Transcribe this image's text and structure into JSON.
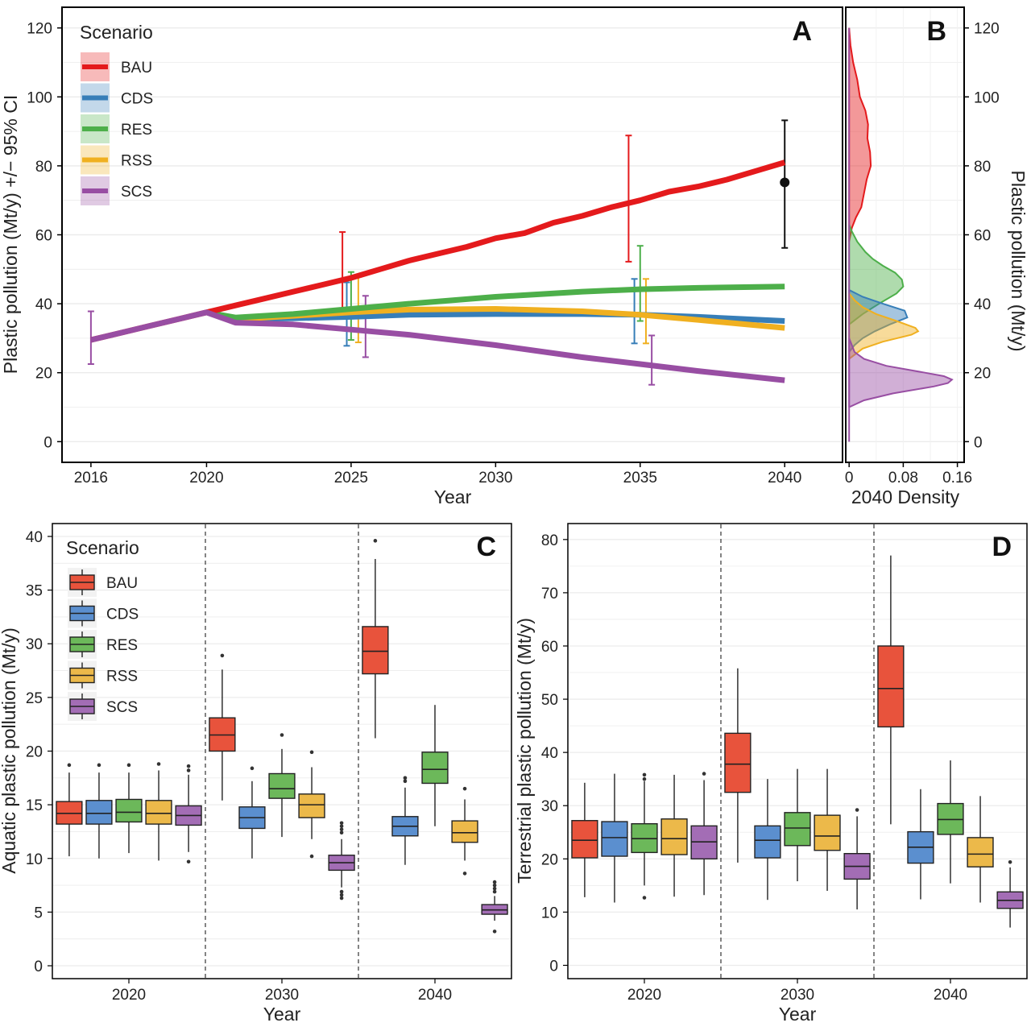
{
  "colors": {
    "BAU": "#e41a1c",
    "CDS": "#377eb8",
    "RES": "#4daf4a",
    "RSS": "#f0b020",
    "SCS": "#984ea3",
    "box_BAU": "#e8533c",
    "box_CDS": "#5b8fcf",
    "box_RES": "#6cb85a",
    "box_RSS": "#ecb94a",
    "box_SCS": "#a36db5"
  },
  "chart_data": [
    {
      "panel": "A",
      "type": "line",
      "xlabel": "Year",
      "ylabel": "Plastic pollution (Mt/y) +/− 95% CI",
      "xlim": [
        2015,
        2042
      ],
      "ylim": [
        -6,
        126
      ],
      "xticks": [
        2016,
        2020,
        2025,
        2030,
        2035,
        2040
      ],
      "yticks": [
        0,
        20,
        40,
        60,
        80,
        100,
        120
      ],
      "legend_title": "Scenario",
      "legend_position": "top-left",
      "series": [
        {
          "name": "BAU",
          "x": [
            2016,
            2017,
            2018,
            2019,
            2020,
            2021,
            2022,
            2023,
            2024,
            2025,
            2026,
            2027,
            2028,
            2029,
            2030,
            2031,
            2032,
            2033,
            2034,
            2035,
            2036,
            2037,
            2038,
            2039,
            2040
          ],
          "y": [
            29.5,
            31.5,
            33.5,
            35.5,
            37.5,
            39.5,
            41.5,
            43.5,
            45.5,
            47.5,
            50,
            52.5,
            54.5,
            56.5,
            59,
            60.5,
            63.5,
            65.5,
            68,
            70,
            72.5,
            74,
            76,
            78.5,
            81
          ]
        },
        {
          "name": "CDS",
          "x": [
            2020,
            2021,
            2023,
            2025,
            2027,
            2030,
            2033,
            2035,
            2037,
            2040
          ],
          "y": [
            37.5,
            35.5,
            35.8,
            36.2,
            36.8,
            37,
            37,
            36.8,
            36.2,
            35
          ]
        },
        {
          "name": "RES",
          "x": [
            2020,
            2021,
            2023,
            2025,
            2027,
            2030,
            2033,
            2035,
            2037,
            2040
          ],
          "y": [
            37.5,
            36,
            37,
            38.5,
            40,
            42,
            43.5,
            44.2,
            44.6,
            45
          ]
        },
        {
          "name": "RSS",
          "x": [
            2020,
            2021,
            2023,
            2025,
            2027,
            2030,
            2033,
            2035,
            2037,
            2040
          ],
          "y": [
            37.5,
            35.5,
            36.5,
            37.5,
            38.3,
            38.5,
            37.8,
            36.8,
            35.3,
            33
          ]
        },
        {
          "name": "SCS",
          "x": [
            2016,
            2017,
            2018,
            2019,
            2020,
            2021,
            2023,
            2025,
            2027,
            2030,
            2033,
            2035,
            2037,
            2040
          ],
          "y": [
            29.5,
            31.5,
            33.5,
            35.5,
            37.5,
            34.5,
            34,
            32.5,
            31,
            28,
            24.5,
            22.5,
            20.5,
            17.8
          ]
        }
      ],
      "error_bars": [
        {
          "series": "SCS",
          "x": 2016,
          "low": 22.5,
          "high": 37.8
        },
        {
          "series": "BAU",
          "x": 2024.7,
          "low": 36.5,
          "high": 60.8
        },
        {
          "series": "CDS",
          "x": 2024.85,
          "low": 27.8,
          "high": 46.2
        },
        {
          "series": "RES",
          "x": 2025.0,
          "low": 29.5,
          "high": 49.2
        },
        {
          "series": "RSS",
          "x": 2025.25,
          "low": 28.8,
          "high": 48.2
        },
        {
          "series": "SCS",
          "x": 2025.5,
          "low": 24.5,
          "high": 42.3
        },
        {
          "series": "BAU",
          "x": 2034.6,
          "low": 52.2,
          "high": 88.8
        },
        {
          "series": "CDS",
          "x": 2034.8,
          "low": 28.5,
          "high": 47.2
        },
        {
          "series": "RES",
          "x": 2035.0,
          "low": 35.0,
          "high": 56.8
        },
        {
          "series": "RSS",
          "x": 2035.2,
          "low": 28.5,
          "high": 47.2
        },
        {
          "series": "SCS",
          "x": 2035.4,
          "low": 16.5,
          "high": 30.8
        },
        {
          "series": "observed",
          "x": 2040,
          "low": 56.2,
          "high": 93.2,
          "point": 75.2
        }
      ]
    },
    {
      "panel": "B",
      "type": "area",
      "xlabel": "2040 Density",
      "ylabel": "Plastic pollution (Mt/y)",
      "xlim": [
        -0.005,
        0.17
      ],
      "ylim": [
        -6,
        126
      ],
      "xticks": [
        0,
        0.08,
        0.16
      ],
      "xtick_labels": [
        "0",
        "0.08",
        "0.16"
      ],
      "yticks": [
        0,
        20,
        40,
        60,
        80,
        100,
        120
      ],
      "series": [
        {
          "name": "BAU",
          "y": [
            58,
            62,
            65,
            68,
            72,
            76,
            80,
            84,
            88,
            92,
            96,
            100,
            105,
            110,
            115,
            120
          ],
          "density": [
            0.0,
            0.004,
            0.01,
            0.018,
            0.022,
            0.026,
            0.032,
            0.031,
            0.027,
            0.028,
            0.024,
            0.016,
            0.012,
            0.006,
            0.002,
            0.0
          ]
        },
        {
          "name": "CDS",
          "y": [
            26,
            28,
            30,
            32,
            34,
            36,
            38,
            40,
            42,
            44
          ],
          "density": [
            0.0,
            0.008,
            0.02,
            0.038,
            0.06,
            0.086,
            0.082,
            0.05,
            0.02,
            0.0
          ]
        },
        {
          "name": "RES",
          "y": [
            34,
            37,
            40,
            43,
            45,
            47,
            49,
            51,
            53,
            55,
            58,
            61,
            63
          ],
          "density": [
            0.0,
            0.02,
            0.044,
            0.07,
            0.08,
            0.078,
            0.068,
            0.05,
            0.035,
            0.024,
            0.012,
            0.004,
            0.0
          ]
        },
        {
          "name": "RSS",
          "y": [
            24,
            27,
            29,
            31,
            32,
            33,
            35,
            37,
            39,
            41,
            43
          ],
          "density": [
            0.0,
            0.02,
            0.05,
            0.092,
            0.102,
            0.098,
            0.07,
            0.04,
            0.02,
            0.008,
            0.0
          ]
        },
        {
          "name": "SCS",
          "y": [
            10,
            12,
            14,
            16,
            17,
            18,
            19,
            20,
            22,
            24,
            26,
            30
          ],
          "density": [
            0.0,
            0.022,
            0.065,
            0.125,
            0.146,
            0.152,
            0.14,
            0.112,
            0.055,
            0.022,
            0.008,
            0.0
          ]
        }
      ]
    },
    {
      "panel": "C",
      "type": "box",
      "xlabel": "Year",
      "ylabel": "Aquatic plastic pollution (Mt/y)",
      "ylim": [
        -1.2,
        41.2
      ],
      "yticks": [
        0,
        5,
        10,
        15,
        20,
        25,
        30,
        35,
        40
      ],
      "categories": [
        "2020",
        "2030",
        "2040"
      ],
      "legend_title": "Scenario",
      "legend_position": "top-left",
      "groups": [
        {
          "year": "2020",
          "boxes": [
            {
              "name": "BAU",
              "min": 10.2,
              "q1": 13.2,
              "median": 14.2,
              "q3": 15.3,
              "max": 18.0,
              "outliers": [
                18.7
              ]
            },
            {
              "name": "CDS",
              "min": 10.0,
              "q1": 13.2,
              "median": 14.2,
              "q3": 15.4,
              "max": 18.0,
              "outliers": [
                18.7
              ]
            },
            {
              "name": "RES",
              "min": 10.5,
              "q1": 13.4,
              "median": 14.3,
              "q3": 15.5,
              "max": 18.0,
              "outliers": [
                18.7
              ]
            },
            {
              "name": "RSS",
              "min": 9.8,
              "q1": 13.2,
              "median": 14.2,
              "q3": 15.4,
              "max": 18.2,
              "outliers": [
                18.8
              ]
            },
            {
              "name": "SCS",
              "min": 10.6,
              "q1": 13.1,
              "median": 14.0,
              "q3": 14.9,
              "max": 17.8,
              "outliers": [
                9.7,
                18.2,
                18.6
              ]
            }
          ]
        },
        {
          "year": "2030",
          "boxes": [
            {
              "name": "BAU",
              "min": 15.4,
              "q1": 20.0,
              "median": 21.5,
              "q3": 23.1,
              "max": 27.6,
              "outliers": [
                28.9
              ]
            },
            {
              "name": "CDS",
              "min": 10.0,
              "q1": 12.8,
              "median": 13.8,
              "q3": 14.8,
              "max": 17.2,
              "outliers": [
                18.4
              ]
            },
            {
              "name": "RES",
              "min": 12.0,
              "q1": 15.6,
              "median": 16.5,
              "q3": 17.9,
              "max": 20.2,
              "outliers": [
                21.5
              ]
            },
            {
              "name": "RSS",
              "min": 11.8,
              "q1": 13.8,
              "median": 15.0,
              "q3": 16.0,
              "max": 18.5,
              "outliers": [
                10.2,
                19.9
              ]
            },
            {
              "name": "SCS",
              "min": 7.3,
              "q1": 8.9,
              "median": 9.6,
              "q3": 10.3,
              "max": 11.8,
              "outliers": [
                6.3,
                6.6,
                6.9,
                12.4,
                12.7,
                13.0,
                13.3
              ]
            }
          ]
        },
        {
          "year": "2040",
          "boxes": [
            {
              "name": "BAU",
              "min": 21.2,
              "q1": 27.2,
              "median": 29.3,
              "q3": 31.6,
              "max": 37.9,
              "outliers": [
                39.6
              ]
            },
            {
              "name": "CDS",
              "min": 9.4,
              "q1": 12.1,
              "median": 13.0,
              "q3": 13.9,
              "max": 16.6,
              "outliers": [
                17.2,
                17.5
              ]
            },
            {
              "name": "RES",
              "min": 13.0,
              "q1": 17.0,
              "median": 18.3,
              "q3": 19.9,
              "max": 24.3,
              "outliers": []
            },
            {
              "name": "RSS",
              "min": 9.8,
              "q1": 11.5,
              "median": 12.4,
              "q3": 13.5,
              "max": 15.5,
              "outliers": [
                8.6,
                16.5
              ]
            },
            {
              "name": "SCS",
              "min": 4.2,
              "q1": 4.8,
              "median": 5.2,
              "q3": 5.7,
              "max": 6.5,
              "outliers": [
                3.2,
                6.9,
                7.2,
                7.5,
                7.8
              ]
            }
          ]
        }
      ]
    },
    {
      "panel": "D",
      "type": "box",
      "xlabel": "Year",
      "ylabel": "Terrestrial plastic pollution (Mt/y)",
      "ylim": [
        -2.5,
        83
      ],
      "yticks": [
        0,
        10,
        20,
        30,
        40,
        50,
        60,
        70,
        80
      ],
      "categories": [
        "2020",
        "2030",
        "2040"
      ],
      "groups": [
        {
          "year": "2020",
          "boxes": [
            {
              "name": "BAU",
              "min": 12.8,
              "q1": 20.2,
              "median": 23.5,
              "q3": 27.2,
              "max": 34.3,
              "outliers": []
            },
            {
              "name": "CDS",
              "min": 11.8,
              "q1": 20.5,
              "median": 24.0,
              "q3": 27.0,
              "max": 36.0,
              "outliers": []
            },
            {
              "name": "RES",
              "min": 15.0,
              "q1": 21.2,
              "median": 23.8,
              "q3": 26.6,
              "max": 34.6,
              "outliers": [
                12.7,
                35.0,
                35.8
              ]
            },
            {
              "name": "RSS",
              "min": 12.9,
              "q1": 20.8,
              "median": 23.8,
              "q3": 27.5,
              "max": 35.8,
              "outliers": []
            },
            {
              "name": "SCS",
              "min": 13.2,
              "q1": 20.0,
              "median": 23.2,
              "q3": 26.2,
              "max": 34.8,
              "outliers": [
                36.0
              ]
            }
          ]
        },
        {
          "year": "2030",
          "boxes": [
            {
              "name": "BAU",
              "min": 19.3,
              "q1": 32.5,
              "median": 37.8,
              "q3": 43.6,
              "max": 55.8,
              "outliers": []
            },
            {
              "name": "CDS",
              "min": 12.3,
              "q1": 20.2,
              "median": 23.5,
              "q3": 26.2,
              "max": 35.0,
              "outliers": []
            },
            {
              "name": "RES",
              "min": 15.8,
              "q1": 22.5,
              "median": 25.8,
              "q3": 28.7,
              "max": 36.9,
              "outliers": []
            },
            {
              "name": "RSS",
              "min": 14.0,
              "q1": 21.6,
              "median": 24.3,
              "q3": 28.2,
              "max": 36.9,
              "outliers": []
            },
            {
              "name": "SCS",
              "min": 10.5,
              "q1": 16.2,
              "median": 18.6,
              "q3": 21.0,
              "max": 28.0,
              "outliers": [
                29.2
              ]
            }
          ]
        },
        {
          "year": "2040",
          "boxes": [
            {
              "name": "BAU",
              "min": 26.5,
              "q1": 44.8,
              "median": 52.0,
              "q3": 60.0,
              "max": 77.0,
              "outliers": []
            },
            {
              "name": "CDS",
              "min": 12.4,
              "q1": 19.2,
              "median": 22.2,
              "q3": 25.1,
              "max": 33.1,
              "outliers": []
            },
            {
              "name": "RES",
              "min": 15.4,
              "q1": 24.6,
              "median": 27.4,
              "q3": 30.4,
              "max": 38.5,
              "outliers": []
            },
            {
              "name": "RSS",
              "min": 11.8,
              "q1": 18.5,
              "median": 20.9,
              "q3": 24.0,
              "max": 31.8,
              "outliers": []
            },
            {
              "name": "SCS",
              "min": 7.1,
              "q1": 10.7,
              "median": 12.2,
              "q3": 13.8,
              "max": 18.4,
              "outliers": [
                19.4
              ]
            }
          ]
        }
      ]
    }
  ],
  "panels": {
    "A": {
      "letter": "A"
    },
    "B": {
      "letter": "B"
    },
    "C": {
      "letter": "C"
    },
    "D": {
      "letter": "D"
    }
  },
  "legend": {
    "title": "Scenario",
    "items": [
      "BAU",
      "CDS",
      "RES",
      "RSS",
      "SCS"
    ]
  }
}
